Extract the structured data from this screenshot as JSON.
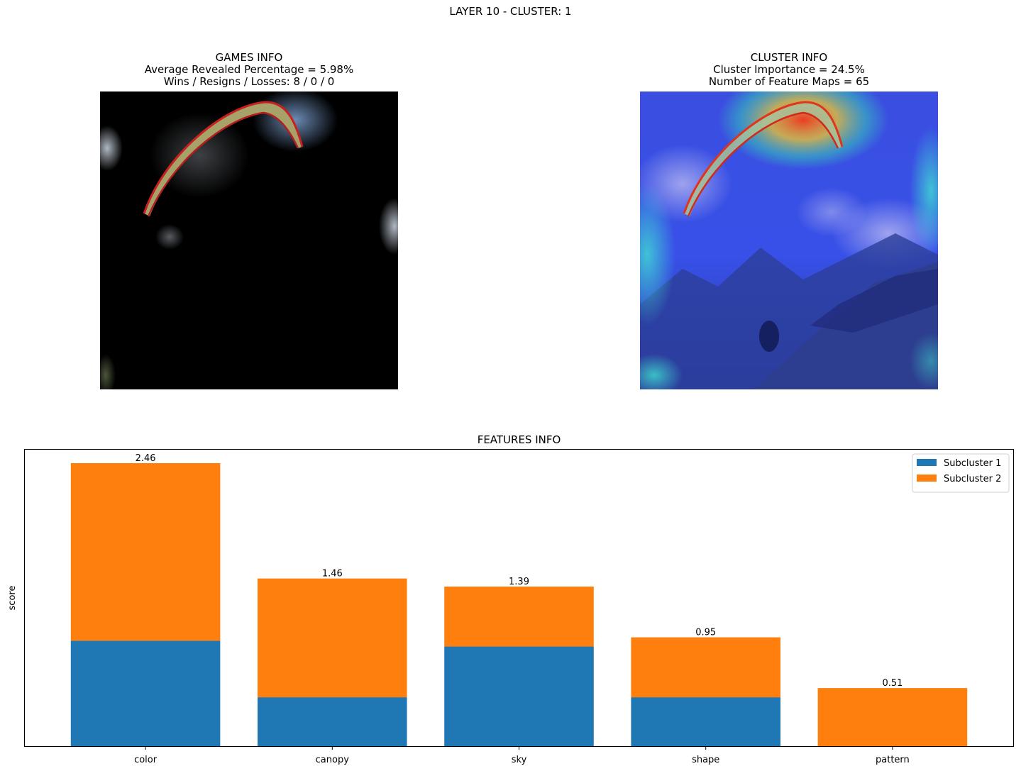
{
  "figure": {
    "suptitle": "LAYER 10 - CLUSTER: 1"
  },
  "games_panel": {
    "title": "GAMES INFO",
    "line1": "Average Revealed Percentage = 5.98%",
    "line2": "Wins / Resigns / Losses: 8 / 0 / 0"
  },
  "cluster_panel": {
    "title": "CLUSTER INFO",
    "line1": "Cluster Importance = 24.5%",
    "line2": "Number of Feature Maps = 65"
  },
  "chart_data": {
    "type": "bar",
    "stacked": true,
    "title": "FEATURES INFO",
    "xlabel": "",
    "ylabel": "score",
    "categories": [
      "color",
      "canopy",
      "sky",
      "shape",
      "pattern"
    ],
    "series": [
      {
        "name": "Subcluster 1",
        "color": "#1f77b4",
        "values": [
          0.92,
          0.43,
          0.87,
          0.43,
          0.0
        ]
      },
      {
        "name": "Subcluster 2",
        "color": "#ff7f0e",
        "values": [
          1.54,
          1.03,
          0.52,
          0.52,
          0.51
        ]
      }
    ],
    "totals": [
      "2.46",
      "1.46",
      "1.39",
      "0.95",
      "0.51"
    ],
    "totals_values": [
      2.46,
      1.46,
      1.39,
      0.95,
      0.51
    ],
    "ylim": [
      0,
      2.583
    ],
    "y_ticks_shown": false,
    "grid": false,
    "legend_position": "top-right"
  }
}
